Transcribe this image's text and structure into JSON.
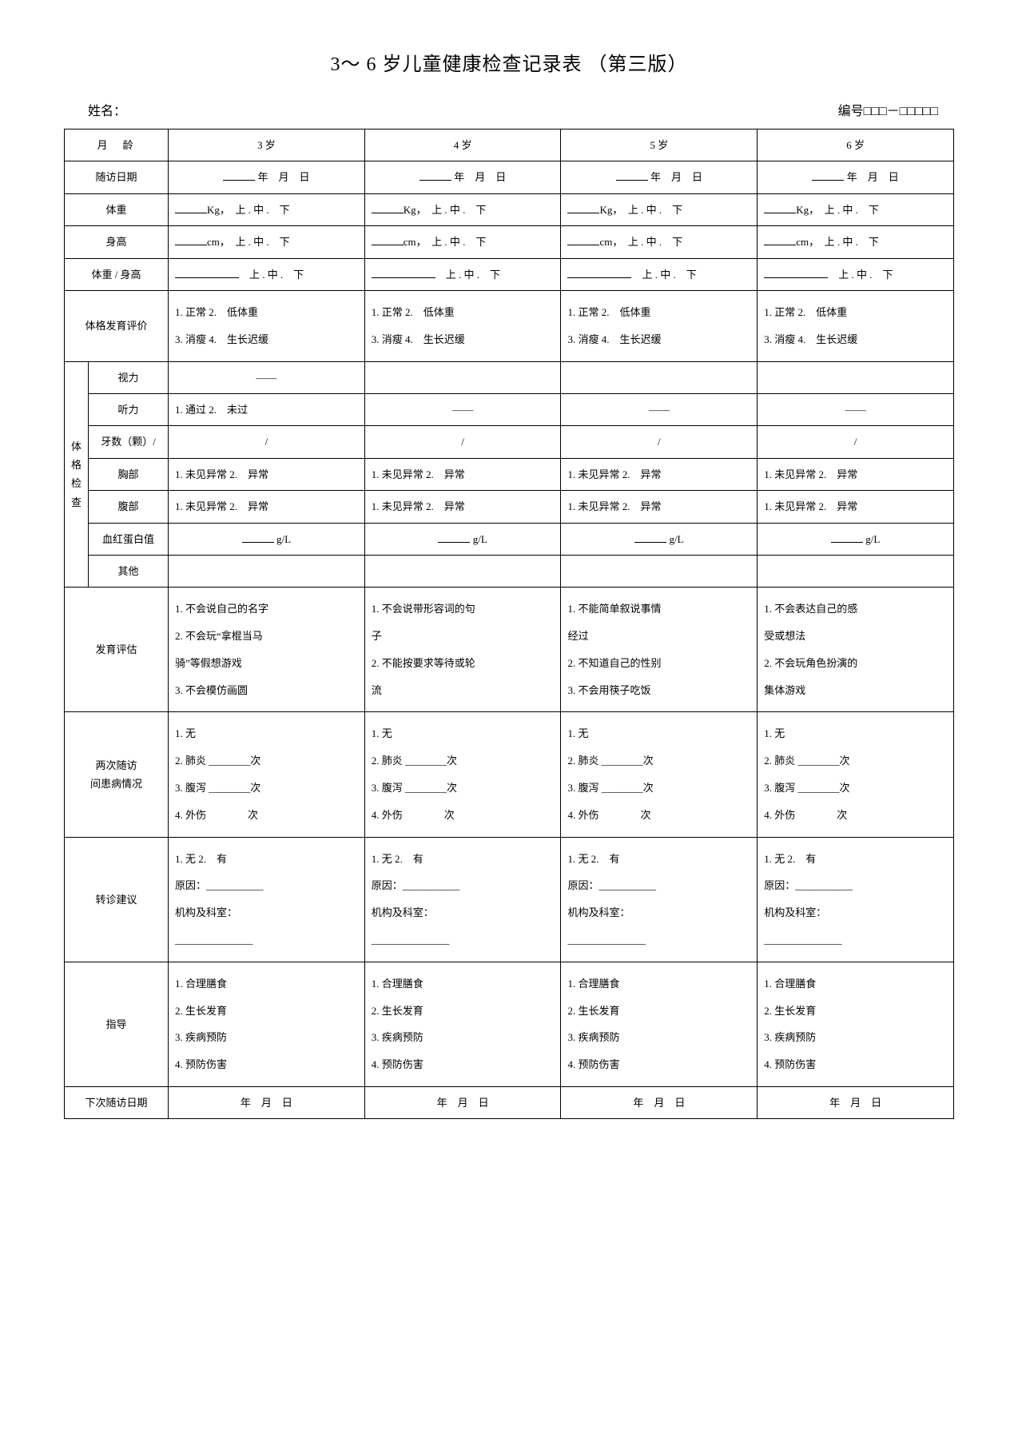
{
  "title": "3～ 6 岁儿童健康检查记录表 （第三版）",
  "header": {
    "name_label": "姓名：",
    "number_label": "编号□□□－□□□□□"
  },
  "rows": {
    "age": {
      "label": "月　龄",
      "c1": "3 岁",
      "c2": "4 岁",
      "c3": "5 岁",
      "c4": "6 岁"
    },
    "visit_date": {
      "label": "随访日期",
      "val": "年　月　日"
    },
    "weight": {
      "label": "体重",
      "unit": "Kg，",
      "opts": "上 . 中 .　下"
    },
    "height": {
      "label": "身高",
      "unit": "cm，",
      "opts": "上 . 中 .　下"
    },
    "ratio": {
      "label": "体重 / 身高",
      "opts": "上 . 中 .　下"
    },
    "physique_eval": {
      "label": "体格发育评价",
      "l1": "1. 正常 2.　低体重",
      "l2": "3. 消瘦 4.　生长迟缓"
    },
    "exam_group": "体\n格\n检\n查",
    "vision": {
      "label": "视力",
      "dash": "——"
    },
    "hearing": {
      "label": "听力",
      "c1": "1. 通过  2.　未过",
      "dash": "——"
    },
    "teeth": {
      "label": "牙数（颗）/",
      "val": "/"
    },
    "chest": {
      "label": "胸部",
      "val": "1. 未见异常  2.　异常"
    },
    "abdomen": {
      "label": "腹部",
      "val": "1. 未见异常  2.　异常"
    },
    "hemoglobin": {
      "label": "血红蛋白值",
      "val": "g/L"
    },
    "other": {
      "label": "其他"
    },
    "dev_assess": {
      "label": "发育评估",
      "c1": "1. 不会说自己的名字\n2. 不会玩“拿棍当马\n骑”等假想游戏\n3. 不会模仿画圆",
      "c2": "1. 不会说带形容词的句\n子\n2. 不能按要求等待或轮\n流",
      "c3": "1. 不能简单叙说事情\n经过\n2. 不知道自己的性别\n3. 不会用筷子吃饭",
      "c4": "1. 不会表达自己的感\n受或想法\n2. 不会玩角色扮演的\n集体游戏"
    },
    "illness": {
      "label1": "两次随访",
      "label2": "间患病情况",
      "l1": "1. 无",
      "l2": "2. 肺炎 ________次",
      "l3": "3. 腹泻 ________次",
      "l4": "4. 外伤　　　　次"
    },
    "referral": {
      "label": "转诊建议",
      "l1": "1. 无 2.　有",
      "l2": "原因：___________",
      "l3": "机构及科室：",
      "l4": "_______________"
    },
    "guidance": {
      "label": "指导",
      "l1": "1. 合理膳食",
      "l2": "2. 生长发育",
      "l3": "3. 疾病预防",
      "l4": "4. 预防伤害"
    },
    "next_visit": {
      "label": "下次随访日期",
      "val": "年　月　日"
    }
  }
}
